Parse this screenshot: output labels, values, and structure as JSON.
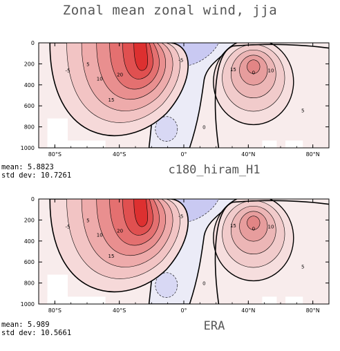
{
  "title": "Zonal mean zonal wind, jja",
  "colors": {
    "positive_strong": "#e03333",
    "positive_light": "#f8e6e6",
    "negative": "#c9c9f2",
    "negative_light": "#ebebf7",
    "frame": "#000000"
  },
  "chart_data": [
    {
      "type": "heatmap",
      "name": "c180_hiram_H1",
      "stats": {
        "mean": "mean: 5.8823",
        "std": "std dev: 10.7261"
      },
      "x_ticks": [
        "80°S",
        "40°S",
        "0°",
        "40°N",
        "80°N"
      ],
      "x_tick_values": [
        -80,
        -40,
        0,
        40,
        80
      ],
      "y_ticks": [
        "0",
        "200",
        "400",
        "600",
        "800",
        "1000"
      ],
      "y_tick_values": [
        0,
        200,
        400,
        600,
        800,
        1000
      ],
      "xlim": [
        -90,
        90
      ],
      "ylim": [
        1000,
        0
      ],
      "contour_interval": 5,
      "contour_labels": [
        "-5",
        "5",
        "10",
        "15",
        "20",
        "0",
        "5",
        "10",
        "15",
        "0",
        "-5"
      ],
      "features": [
        {
          "kind": "max",
          "lat": -27,
          "p": 200,
          "value": 40
        },
        {
          "kind": "max",
          "lat": 36,
          "p": 220,
          "value": 20
        },
        {
          "kind": "min",
          "lat": -2,
          "p": 80,
          "value": -10
        }
      ]
    },
    {
      "type": "heatmap",
      "name": "ERA",
      "stats": {
        "mean": "mean: 5.989",
        "std": "std dev: 10.5661"
      },
      "x_ticks": [
        "80°S",
        "40°S",
        "0°",
        "40°N",
        "80°N"
      ],
      "x_tick_values": [
        -80,
        -40,
        0,
        40,
        80
      ],
      "y_ticks": [
        "0",
        "200",
        "400",
        "600",
        "800",
        "1000"
      ],
      "y_tick_values": [
        0,
        200,
        400,
        600,
        800,
        1000
      ],
      "xlim": [
        -90,
        90
      ],
      "ylim": [
        1000,
        0
      ],
      "contour_interval": 5,
      "contour_labels": [
        "-5",
        "5",
        "10",
        "15",
        "20",
        "0",
        "5",
        "10",
        "15",
        "0",
        "-5"
      ],
      "features": [
        {
          "kind": "max",
          "lat": -27,
          "p": 200,
          "value": 40
        },
        {
          "kind": "max",
          "lat": 36,
          "p": 220,
          "value": 20
        },
        {
          "kind": "min",
          "lat": -5,
          "p": 80,
          "value": -10
        }
      ]
    }
  ]
}
